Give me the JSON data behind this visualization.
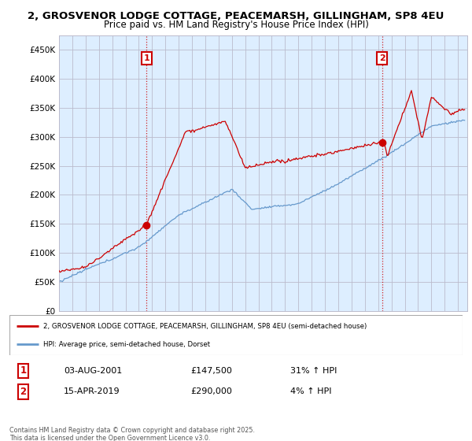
{
  "title": "2, GROSVENOR LODGE COTTAGE, PEACEMARSH, GILLINGHAM, SP8 4EU",
  "subtitle": "Price paid vs. HM Land Registry's House Price Index (HPI)",
  "sale1_date": "03-AUG-2001",
  "sale1_price": 147500,
  "sale1_hpi": "31% ↑ HPI",
  "sale1_label": "1",
  "sale2_date": "15-APR-2019",
  "sale2_price": 290000,
  "sale2_hpi": "4% ↑ HPI",
  "sale2_label": "2",
  "legend1": "2, GROSVENOR LODGE COTTAGE, PEACEMARSH, GILLINGHAM, SP8 4EU (semi-detached house)",
  "legend2": "HPI: Average price, semi-detached house, Dorset",
  "footer": "Contains HM Land Registry data © Crown copyright and database right 2025.\nThis data is licensed under the Open Government Licence v3.0.",
  "red_color": "#cc0000",
  "blue_color": "#6699cc",
  "chart_bg": "#ddeeff",
  "background_color": "#ffffff",
  "grid_color": "#bbbbcc",
  "ylim": [
    0,
    475000
  ],
  "yticks": [
    0,
    50000,
    100000,
    150000,
    200000,
    250000,
    300000,
    350000,
    400000,
    450000
  ],
  "xmin": 1995.0,
  "xmax": 2025.7
}
